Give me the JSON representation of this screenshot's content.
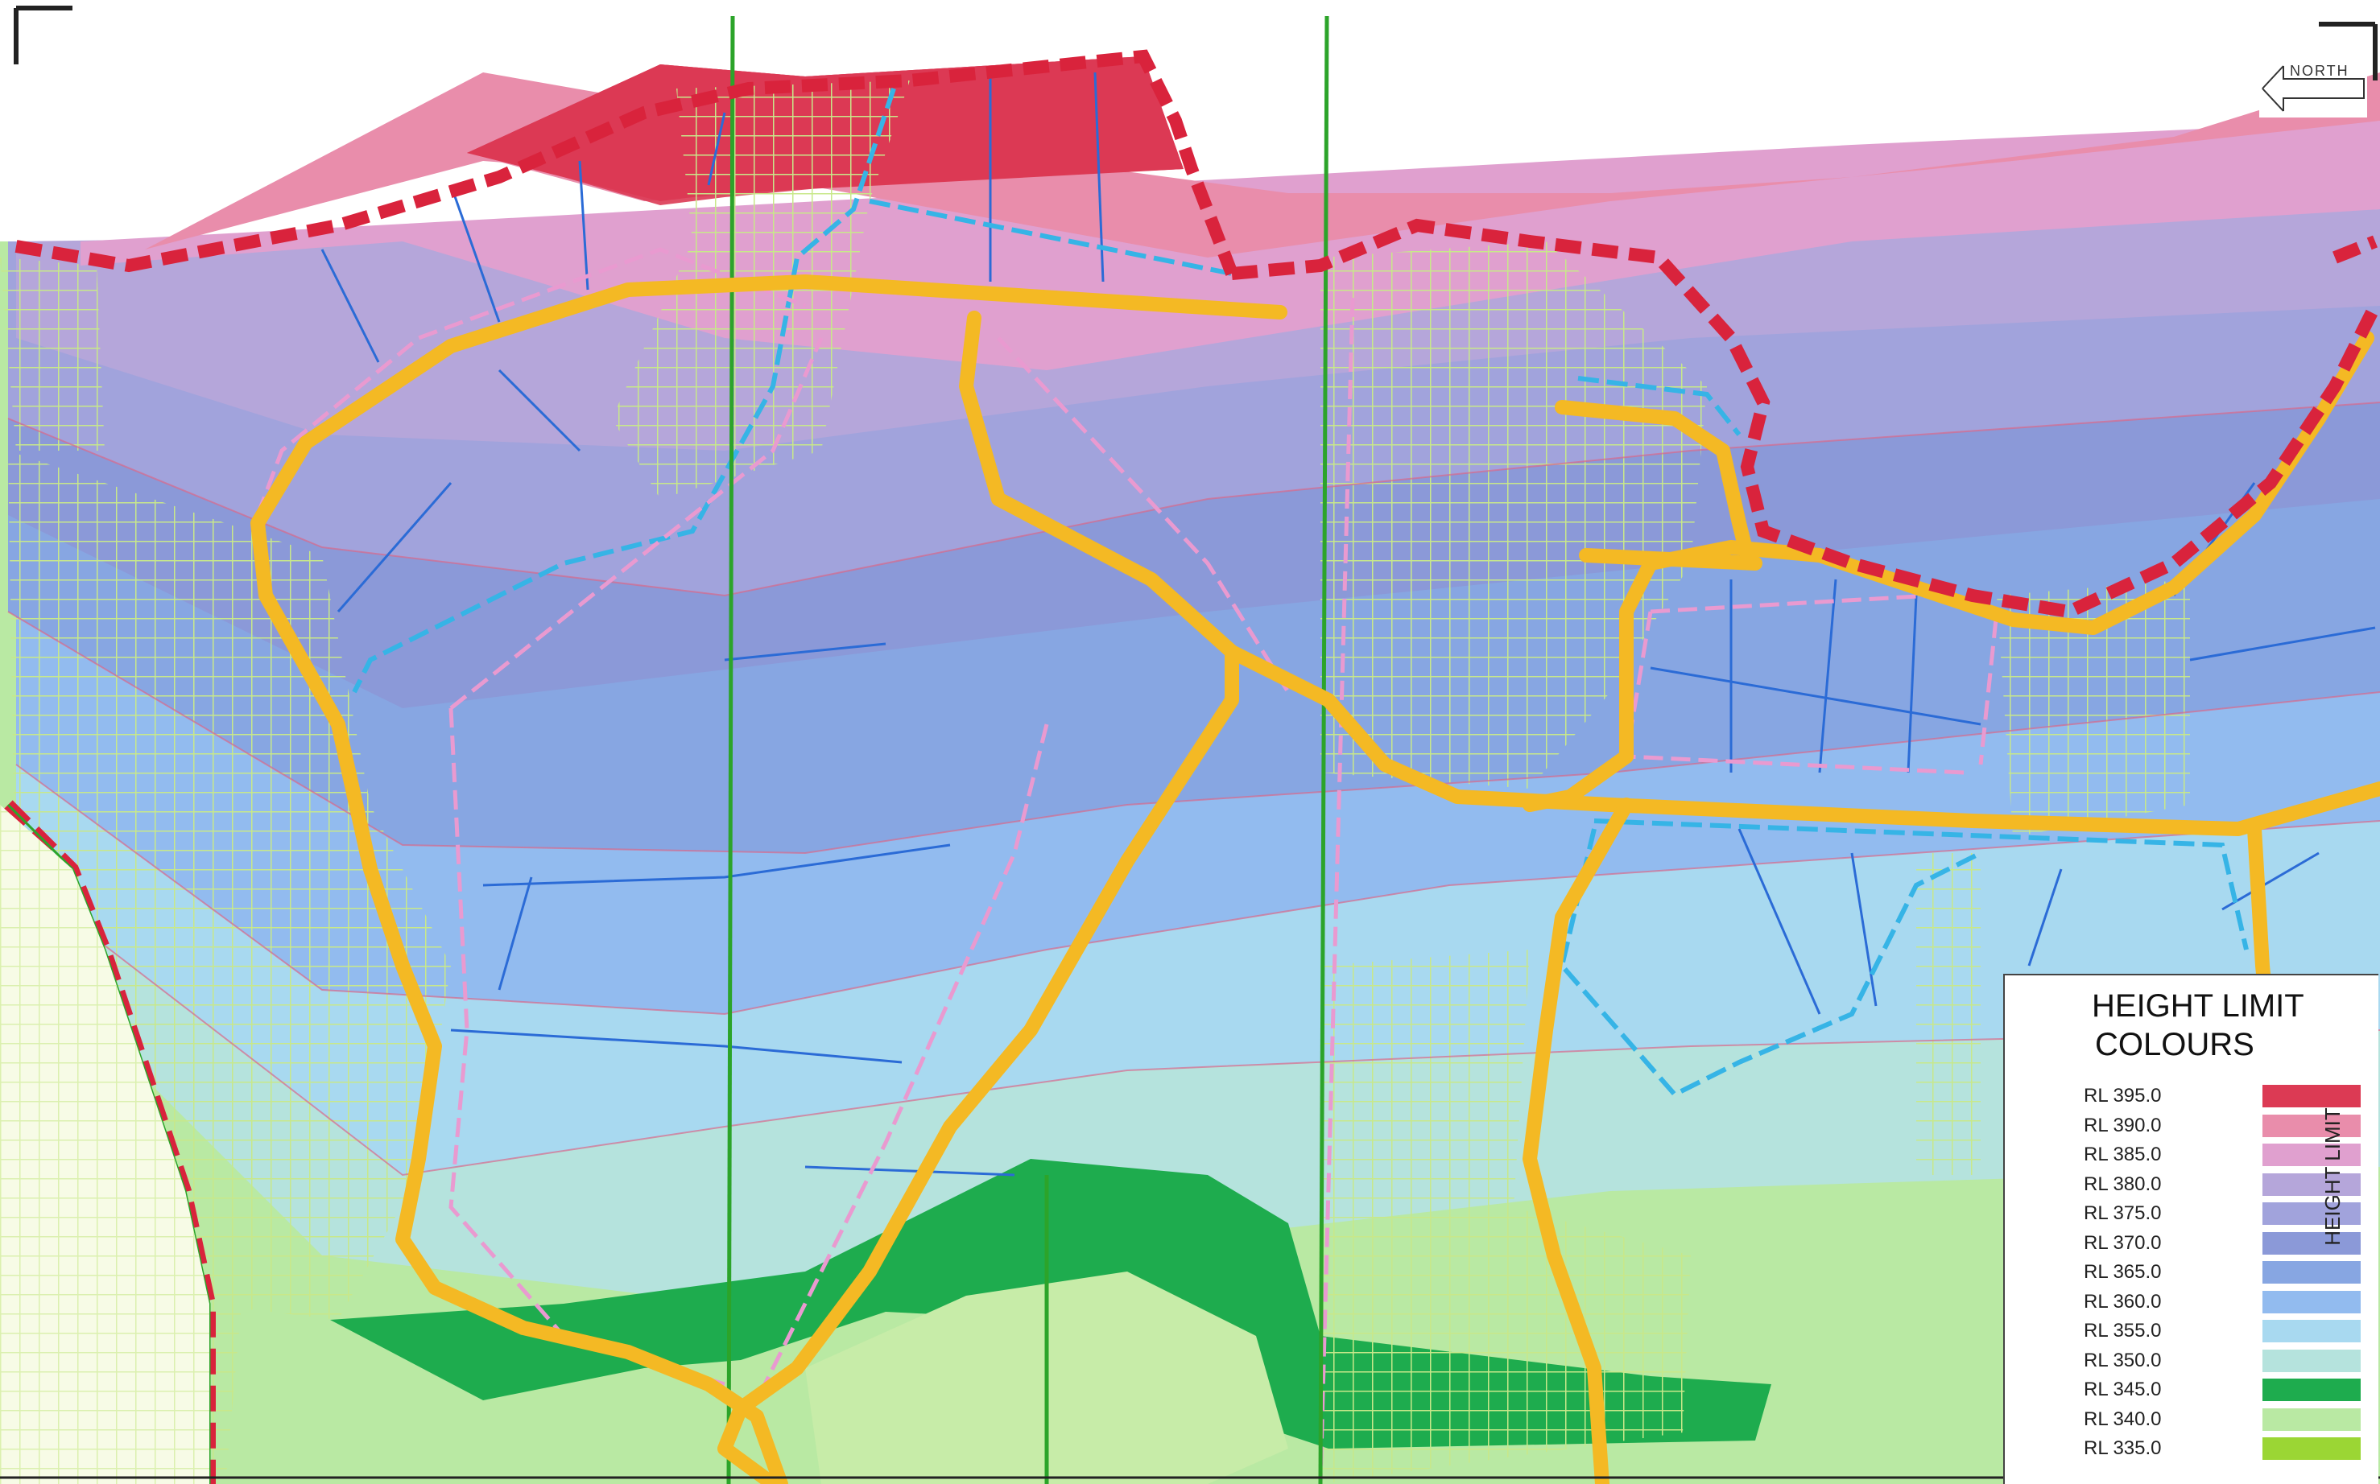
{
  "north_arrow": {
    "label": "NORTH",
    "icon": "left-arrow-icon"
  },
  "legend": {
    "title_line1": "HEIGHT LIMIT",
    "title_line2": "COLOURS",
    "axis_label": "HEIGHT LIMIT",
    "entries": [
      {
        "label": "RL 395.0",
        "color": "#dc3a54"
      },
      {
        "label": "RL 390.0",
        "color": "#e98dab"
      },
      {
        "label": "RL 385.0",
        "color": "#e0a0cf"
      },
      {
        "label": "RL 380.0",
        "color": "#b5a6da"
      },
      {
        "label": "RL 375.0",
        "color": "#a1a3dc"
      },
      {
        "label": "RL 370.0",
        "color": "#8b99d8"
      },
      {
        "label": "RL 365.0",
        "color": "#87a6e2"
      },
      {
        "label": "RL 360.0",
        "color": "#92bbef"
      },
      {
        "label": "RL 355.0",
        "color": "#a8d9f0"
      },
      {
        "label": "RL 350.0",
        "color": "#b5e3dd"
      },
      {
        "label": "RL 345.0",
        "color": "#1eac4e"
      },
      {
        "label": "RL 340.0",
        "color": "#b9e9a3"
      },
      {
        "label": "RL 335.0",
        "color": "#9bd634"
      }
    ]
  },
  "colors": {
    "boundary": "#d9233c",
    "road": "#f4b924",
    "lot_line": "#2b6bd6",
    "easement": "#36b4e6",
    "path": "#e99ad0",
    "grid_line": "#2ca42a",
    "hatch": "#c8e88a"
  }
}
